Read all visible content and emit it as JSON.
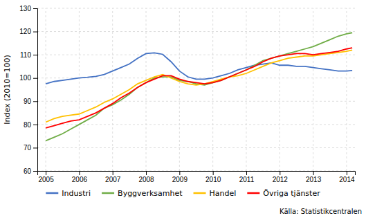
{
  "chart_data": {
    "type": "line",
    "ylabel": "Index (2010=100)",
    "xlim": [
      2004.75,
      2014.25
    ],
    "xticks": [
      2005,
      2006,
      2007,
      2008,
      2009,
      2010,
      2011,
      2012,
      2013,
      2014
    ],
    "ylim": [
      60,
      130
    ],
    "yticks": [
      60,
      70,
      80,
      90,
      100,
      110,
      120,
      130
    ],
    "grid": true,
    "legend": "bottom",
    "annotations": [
      "Källa: Statistikcentralen"
    ],
    "x": [
      2005.0,
      2005.25,
      2005.5,
      2005.75,
      2006.0,
      2006.25,
      2006.5,
      2006.75,
      2007.0,
      2007.25,
      2007.5,
      2007.75,
      2008.0,
      2008.25,
      2008.5,
      2008.75,
      2009.0,
      2009.25,
      2009.5,
      2009.75,
      2010.0,
      2010.25,
      2010.5,
      2010.75,
      2011.0,
      2011.25,
      2011.5,
      2011.75,
      2012.0,
      2012.25,
      2012.5,
      2012.75,
      2013.0,
      2013.25,
      2013.5,
      2013.75,
      2014.0,
      2014.17
    ],
    "series": [
      {
        "name": "Industri",
        "color": "#4472c4",
        "values": [
          97.5,
          98.5,
          99.0,
          99.5,
          100.0,
          100.3,
          100.7,
          101.5,
          103.0,
          104.5,
          106.0,
          108.5,
          110.5,
          110.8,
          110.2,
          107.0,
          103.0,
          100.5,
          99.5,
          99.5,
          100.0,
          101.0,
          102.0,
          103.5,
          104.5,
          105.5,
          106.0,
          106.5,
          105.5,
          105.5,
          105.0,
          105.0,
          104.5,
          104.0,
          103.5,
          103.0,
          103.0,
          103.2
        ]
      },
      {
        "name": "Byggverksamhet",
        "color": "#70ad47",
        "values": [
          73.0,
          74.5,
          76.0,
          78.0,
          80.0,
          82.0,
          84.0,
          87.0,
          88.5,
          90.5,
          93.0,
          96.0,
          98.0,
          100.0,
          100.5,
          100.5,
          99.0,
          98.5,
          97.5,
          97.0,
          98.0,
          99.0,
          100.5,
          102.0,
          103.5,
          105.5,
          107.5,
          108.5,
          109.5,
          110.5,
          111.5,
          112.5,
          113.5,
          115.0,
          116.5,
          118.0,
          119.0,
          119.5
        ]
      },
      {
        "name": "Handel",
        "color": "#ffc000",
        "values": [
          81.0,
          82.5,
          83.5,
          84.0,
          84.5,
          86.0,
          87.5,
          89.5,
          91.0,
          93.0,
          95.0,
          97.5,
          99.0,
          100.5,
          101.5,
          100.0,
          98.5,
          97.5,
          97.0,
          97.5,
          98.5,
          99.5,
          100.5,
          101.0,
          102.0,
          103.5,
          105.0,
          106.5,
          107.5,
          108.5,
          109.0,
          109.5,
          109.5,
          110.0,
          110.5,
          111.0,
          111.5,
          112.0
        ]
      },
      {
        "name": "Övriga tjänster",
        "color": "#ff0000",
        "values": [
          78.5,
          79.5,
          80.5,
          81.5,
          82.0,
          83.5,
          85.0,
          87.0,
          89.0,
          91.5,
          93.5,
          96.0,
          98.0,
          99.5,
          101.0,
          101.0,
          99.5,
          98.5,
          98.0,
          97.5,
          98.0,
          99.0,
          100.5,
          102.0,
          103.5,
          105.0,
          107.0,
          108.5,
          109.5,
          110.0,
          110.5,
          110.5,
          110.0,
          110.5,
          111.0,
          111.5,
          112.5,
          113.0
        ]
      }
    ]
  }
}
